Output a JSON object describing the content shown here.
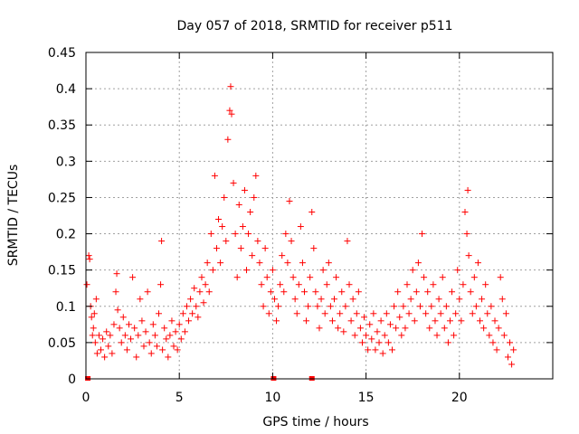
{
  "chart_data": {
    "type": "scatter",
    "title": "Day 057 of 2018, SRMTID for receiver p511",
    "xlabel": "GPS time / hours",
    "ylabel": "SRMTID / TECUs",
    "xlim": [
      0,
      25
    ],
    "ylim": [
      0,
      0.45
    ],
    "grid": true,
    "marker": "+",
    "color": "#ff0000",
    "x_ticks": [
      {
        "value": 0,
        "label": "0"
      },
      {
        "value": 5,
        "label": "5"
      },
      {
        "value": 10,
        "label": "10"
      },
      {
        "value": 15,
        "label": "15"
      },
      {
        "value": 20,
        "label": "20"
      }
    ],
    "y_ticks": [
      {
        "value": 0,
        "label": "0"
      },
      {
        "value": 0.05,
        "label": "0.05"
      },
      {
        "value": 0.1,
        "label": "0.1"
      },
      {
        "value": 0.15,
        "label": "0.15"
      },
      {
        "value": 0.2,
        "label": "0.2"
      },
      {
        "value": 0.25,
        "label": "0.25"
      },
      {
        "value": 0.3,
        "label": "0.3"
      },
      {
        "value": 0.35,
        "label": "0.35"
      },
      {
        "value": 0.4,
        "label": "0.4"
      },
      {
        "value": 0.45,
        "label": "0.45"
      }
    ],
    "series": [
      {
        "name": "SRMTID",
        "points": [
          [
            0.05,
            0.13
          ],
          [
            0.15,
            0.17
          ],
          [
            0.2,
            0.165
          ],
          [
            0.25,
            0.1
          ],
          [
            0.3,
            0.085
          ],
          [
            0.35,
            0.06
          ],
          [
            0.4,
            0.07
          ],
          [
            0.45,
            0.09
          ],
          [
            0.5,
            0.05
          ],
          [
            0.55,
            0.11
          ],
          [
            0.6,
            0.035
          ],
          [
            0.7,
            0.06
          ],
          [
            0.8,
            0.04
          ],
          [
            0.9,
            0.055
          ],
          [
            1.0,
            0.03
          ],
          [
            1.1,
            0.065
          ],
          [
            1.2,
            0.045
          ],
          [
            1.3,
            0.06
          ],
          [
            1.4,
            0.035
          ],
          [
            1.5,
            0.075
          ],
          [
            1.6,
            0.12
          ],
          [
            1.65,
            0.145
          ],
          [
            1.7,
            0.095
          ],
          [
            1.8,
            0.07
          ],
          [
            1.9,
            0.05
          ],
          [
            2.0,
            0.085
          ],
          [
            2.1,
            0.06
          ],
          [
            2.2,
            0.04
          ],
          [
            2.3,
            0.075
          ],
          [
            2.4,
            0.055
          ],
          [
            2.5,
            0.14
          ],
          [
            2.6,
            0.07
          ],
          [
            2.7,
            0.03
          ],
          [
            2.8,
            0.06
          ],
          [
            2.9,
            0.11
          ],
          [
            3.0,
            0.08
          ],
          [
            3.1,
            0.045
          ],
          [
            3.2,
            0.065
          ],
          [
            3.3,
            0.12
          ],
          [
            3.4,
            0.05
          ],
          [
            3.5,
            0.035
          ],
          [
            3.6,
            0.075
          ],
          [
            3.7,
            0.06
          ],
          [
            3.8,
            0.045
          ],
          [
            3.9,
            0.09
          ],
          [
            4.0,
            0.13
          ],
          [
            4.05,
            0.19
          ],
          [
            4.1,
            0.04
          ],
          [
            4.2,
            0.07
          ],
          [
            4.3,
            0.055
          ],
          [
            4.4,
            0.03
          ],
          [
            4.5,
            0.06
          ],
          [
            4.6,
            0.08
          ],
          [
            4.7,
            0.045
          ],
          [
            4.8,
            0.065
          ],
          [
            4.9,
            0.04
          ],
          [
            5.0,
            0.075
          ],
          [
            5.1,
            0.055
          ],
          [
            5.2,
            0.09
          ],
          [
            5.3,
            0.065
          ],
          [
            5.4,
            0.1
          ],
          [
            5.5,
            0.08
          ],
          [
            5.6,
            0.11
          ],
          [
            5.7,
            0.09
          ],
          [
            5.8,
            0.125
          ],
          [
            5.9,
            0.1
          ],
          [
            6.0,
            0.085
          ],
          [
            6.1,
            0.12
          ],
          [
            6.2,
            0.14
          ],
          [
            6.3,
            0.105
          ],
          [
            6.4,
            0.13
          ],
          [
            6.5,
            0.16
          ],
          [
            6.6,
            0.12
          ],
          [
            6.7,
            0.2
          ],
          [
            6.8,
            0.15
          ],
          [
            6.9,
            0.28
          ],
          [
            7.0,
            0.18
          ],
          [
            7.1,
            0.22
          ],
          [
            7.2,
            0.16
          ],
          [
            7.3,
            0.21
          ],
          [
            7.4,
            0.25
          ],
          [
            7.5,
            0.19
          ],
          [
            7.6,
            0.33
          ],
          [
            7.7,
            0.37
          ],
          [
            7.75,
            0.403
          ],
          [
            7.8,
            0.365
          ],
          [
            7.9,
            0.27
          ],
          [
            8.0,
            0.2
          ],
          [
            8.1,
            0.14
          ],
          [
            8.2,
            0.24
          ],
          [
            8.3,
            0.18
          ],
          [
            8.4,
            0.21
          ],
          [
            8.5,
            0.26
          ],
          [
            8.6,
            0.15
          ],
          [
            8.7,
            0.2
          ],
          [
            8.8,
            0.23
          ],
          [
            8.9,
            0.17
          ],
          [
            9.0,
            0.25
          ],
          [
            9.1,
            0.28
          ],
          [
            9.2,
            0.19
          ],
          [
            9.3,
            0.16
          ],
          [
            9.4,
            0.13
          ],
          [
            9.5,
            0.1
          ],
          [
            9.6,
            0.18
          ],
          [
            9.7,
            0.14
          ],
          [
            9.8,
            0.09
          ],
          [
            9.9,
            0.12
          ],
          [
            10.0,
            0.15
          ],
          [
            10.1,
            0.11
          ],
          [
            10.2,
            0.08
          ],
          [
            10.3,
            0.1
          ],
          [
            10.4,
            0.13
          ],
          [
            10.5,
            0.17
          ],
          [
            10.6,
            0.12
          ],
          [
            10.7,
            0.2
          ],
          [
            10.8,
            0.16
          ],
          [
            10.9,
            0.245
          ],
          [
            11.0,
            0.19
          ],
          [
            11.1,
            0.14
          ],
          [
            11.2,
            0.11
          ],
          [
            11.3,
            0.09
          ],
          [
            11.4,
            0.13
          ],
          [
            11.5,
            0.21
          ],
          [
            11.6,
            0.16
          ],
          [
            11.7,
            0.12
          ],
          [
            11.8,
            0.08
          ],
          [
            11.9,
            0.1
          ],
          [
            12.0,
            0.14
          ],
          [
            12.1,
            0.23
          ],
          [
            12.2,
            0.18
          ],
          [
            12.3,
            0.12
          ],
          [
            12.4,
            0.1
          ],
          [
            12.5,
            0.07
          ],
          [
            12.6,
            0.11
          ],
          [
            12.7,
            0.15
          ],
          [
            12.8,
            0.09
          ],
          [
            12.9,
            0.13
          ],
          [
            13.0,
            0.16
          ],
          [
            13.1,
            0.1
          ],
          [
            13.2,
            0.08
          ],
          [
            13.3,
            0.11
          ],
          [
            13.4,
            0.14
          ],
          [
            13.5,
            0.07
          ],
          [
            13.6,
            0.09
          ],
          [
            13.7,
            0.12
          ],
          [
            13.8,
            0.065
          ],
          [
            13.9,
            0.1
          ],
          [
            14.0,
            0.19
          ],
          [
            14.1,
            0.13
          ],
          [
            14.2,
            0.08
          ],
          [
            14.3,
            0.11
          ],
          [
            14.4,
            0.06
          ],
          [
            14.5,
            0.09
          ],
          [
            14.6,
            0.12
          ],
          [
            14.7,
            0.07
          ],
          [
            14.8,
            0.05
          ],
          [
            14.9,
            0.085
          ],
          [
            15.0,
            0.06
          ],
          [
            15.1,
            0.04
          ],
          [
            15.2,
            0.075
          ],
          [
            15.3,
            0.055
          ],
          [
            15.4,
            0.09
          ],
          [
            15.5,
            0.04
          ],
          [
            15.6,
            0.065
          ],
          [
            15.7,
            0.05
          ],
          [
            15.8,
            0.08
          ],
          [
            15.9,
            0.035
          ],
          [
            16.0,
            0.06
          ],
          [
            16.1,
            0.09
          ],
          [
            16.2,
            0.05
          ],
          [
            16.3,
            0.075
          ],
          [
            16.4,
            0.04
          ],
          [
            16.5,
            0.1
          ],
          [
            16.6,
            0.07
          ],
          [
            16.7,
            0.12
          ],
          [
            16.8,
            0.085
          ],
          [
            16.9,
            0.06
          ],
          [
            17.0,
            0.1
          ],
          [
            17.1,
            0.07
          ],
          [
            17.2,
            0.13
          ],
          [
            17.3,
            0.09
          ],
          [
            17.4,
            0.11
          ],
          [
            17.5,
            0.15
          ],
          [
            17.6,
            0.08
          ],
          [
            17.7,
            0.12
          ],
          [
            17.8,
            0.16
          ],
          [
            17.9,
            0.1
          ],
          [
            18.0,
            0.2
          ],
          [
            18.1,
            0.14
          ],
          [
            18.2,
            0.09
          ],
          [
            18.3,
            0.12
          ],
          [
            18.4,
            0.07
          ],
          [
            18.5,
            0.1
          ],
          [
            18.6,
            0.13
          ],
          [
            18.7,
            0.08
          ],
          [
            18.8,
            0.06
          ],
          [
            18.9,
            0.11
          ],
          [
            19.0,
            0.09
          ],
          [
            19.1,
            0.14
          ],
          [
            19.2,
            0.07
          ],
          [
            19.3,
            0.1
          ],
          [
            19.4,
            0.05
          ],
          [
            19.5,
            0.08
          ],
          [
            19.6,
            0.12
          ],
          [
            19.7,
            0.06
          ],
          [
            19.8,
            0.09
          ],
          [
            19.9,
            0.15
          ],
          [
            20.0,
            0.11
          ],
          [
            20.1,
            0.08
          ],
          [
            20.2,
            0.13
          ],
          [
            20.3,
            0.23
          ],
          [
            20.4,
            0.2
          ],
          [
            20.45,
            0.26
          ],
          [
            20.5,
            0.17
          ],
          [
            20.6,
            0.12
          ],
          [
            20.7,
            0.09
          ],
          [
            20.8,
            0.14
          ],
          [
            20.9,
            0.1
          ],
          [
            21.0,
            0.16
          ],
          [
            21.1,
            0.08
          ],
          [
            21.2,
            0.11
          ],
          [
            21.3,
            0.07
          ],
          [
            21.4,
            0.13
          ],
          [
            21.5,
            0.09
          ],
          [
            21.6,
            0.06
          ],
          [
            21.7,
            0.1
          ],
          [
            21.8,
            0.05
          ],
          [
            21.9,
            0.08
          ],
          [
            22.0,
            0.04
          ],
          [
            22.1,
            0.07
          ],
          [
            22.2,
            0.14
          ],
          [
            22.3,
            0.11
          ],
          [
            22.4,
            0.06
          ],
          [
            22.5,
            0.09
          ],
          [
            22.6,
            0.03
          ],
          [
            22.7,
            0.05
          ],
          [
            22.8,
            0.02
          ],
          [
            22.9,
            0.04
          ]
        ],
        "zero_markers_x": [
          0.1,
          10.05,
          12.1
        ]
      }
    ]
  }
}
